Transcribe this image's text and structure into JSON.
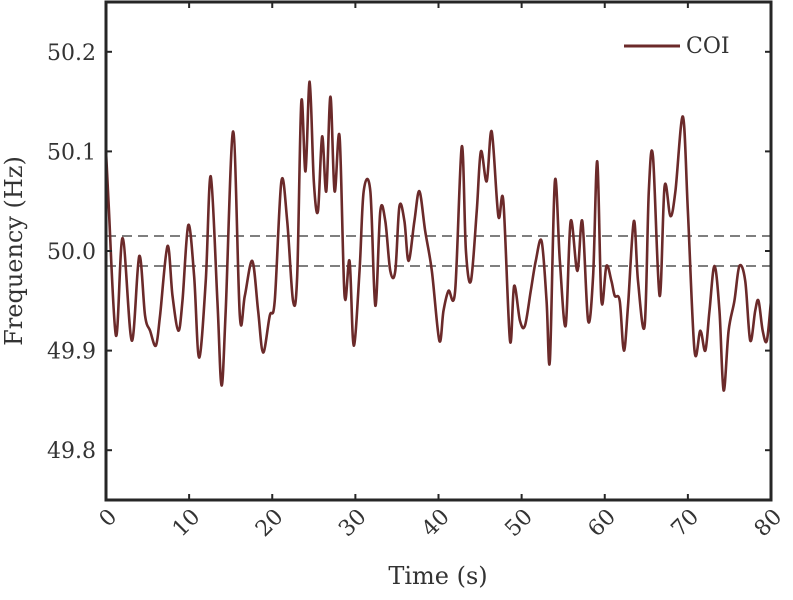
{
  "chart_data": {
    "type": "line",
    "xlabel": "Time (s)",
    "ylabel": "Frequency (Hz)",
    "xlim": [
      0,
      80
    ],
    "ylim": [
      49.75,
      50.25
    ],
    "xticks": [
      "0",
      "10",
      "20",
      "30",
      "40",
      "50",
      "60",
      "70",
      "80"
    ],
    "yticks": [
      "49.8",
      "49.9",
      "50.0",
      "50.1",
      "50.2"
    ],
    "grid": false,
    "legend": {
      "position": "top-right"
    },
    "series": [
      {
        "name": "COI",
        "color": "#6b2a2a",
        "x": [
          0,
          0.3,
          1.2,
          2.0,
          3.1,
          4.0,
          4.7,
          5.3,
          6.0,
          6.5,
          7.4,
          8.0,
          8.7,
          9.2,
          9.9,
          10.6,
          11.2,
          12.0,
          12.6,
          13.4,
          13.9,
          14.4,
          15.3,
          16.1,
          16.7,
          17.6,
          18.3,
          18.9,
          19.7,
          20.3,
          21.1,
          21.8,
          22.5,
          23.0,
          23.5,
          24.0,
          24.5,
          25.0,
          25.5,
          26.0,
          26.5,
          27.0,
          27.5,
          28.1,
          28.7,
          29.3,
          29.8,
          30.5,
          31.0,
          31.8,
          32.4,
          33.0,
          33.6,
          34.2,
          34.8,
          35.3,
          35.9,
          36.4,
          37.1,
          37.7,
          38.4,
          39.2,
          40.1,
          40.6,
          41.2,
          42.0,
          42.8,
          43.3,
          43.9,
          44.6,
          45.1,
          45.8,
          46.4,
          47.2,
          47.8,
          48.6,
          49.1,
          49.8,
          50.4,
          51.1,
          51.7,
          52.4,
          53.0,
          53.4,
          54.0,
          54.6,
          55.3,
          55.9,
          56.7,
          57.3,
          58.0,
          58.6,
          59.1,
          59.6,
          60.2,
          60.8,
          61.2,
          61.8,
          62.3,
          62.8,
          63.5,
          64.0,
          64.8,
          65.3,
          65.8,
          66.6,
          67.2,
          67.9,
          68.5,
          69.4,
          70.0,
          70.8,
          71.5,
          72.1,
          72.6,
          73.2,
          73.8,
          74.3,
          74.9,
          75.6,
          76.2,
          76.9,
          77.5,
          78.1,
          78.5,
          79.0,
          79.5,
          80.0
        ],
        "y": [
          50.1,
          50.05,
          49.915,
          50.013,
          49.91,
          49.995,
          49.935,
          49.92,
          49.905,
          49.935,
          50.005,
          49.955,
          49.92,
          49.95,
          50.026,
          49.975,
          49.893,
          49.97,
          50.075,
          49.95,
          49.865,
          49.94,
          50.12,
          49.935,
          49.955,
          49.99,
          49.94,
          49.898,
          49.935,
          49.95,
          50.07,
          50.03,
          49.95,
          49.975,
          50.15,
          50.08,
          50.17,
          50.07,
          50.04,
          50.115,
          50.06,
          50.155,
          50.06,
          50.115,
          49.955,
          49.99,
          49.905,
          49.98,
          50.06,
          50.06,
          49.945,
          50.04,
          50.03,
          49.98,
          49.98,
          50.045,
          50.03,
          49.99,
          50.03,
          50.06,
          50.02,
          49.98,
          49.91,
          49.94,
          49.96,
          49.96,
          50.105,
          50.0,
          49.97,
          50.04,
          50.1,
          50.07,
          50.12,
          50.035,
          50.05,
          49.91,
          49.965,
          49.93,
          49.925,
          49.96,
          49.99,
          50.01,
          49.95,
          49.89,
          50.07,
          49.99,
          49.925,
          50.03,
          49.98,
          50.03,
          49.93,
          49.975,
          50.09,
          49.95,
          49.985,
          49.97,
          49.955,
          49.95,
          49.9,
          49.945,
          50.03,
          49.97,
          49.925,
          50.06,
          50.095,
          49.955,
          50.065,
          50.035,
          50.06,
          50.135,
          50.04,
          49.9,
          49.92,
          49.9,
          49.94,
          49.985,
          49.94,
          49.86,
          49.92,
          49.95,
          49.985,
          49.97,
          49.91,
          49.94,
          49.95,
          49.92,
          49.91,
          49.95
        ]
      }
    ],
    "reference_lines": [
      {
        "y": 50.015,
        "style": "dashed",
        "color": "#555555"
      },
      {
        "y": 49.985,
        "style": "dashed",
        "color": "#555555"
      }
    ]
  }
}
